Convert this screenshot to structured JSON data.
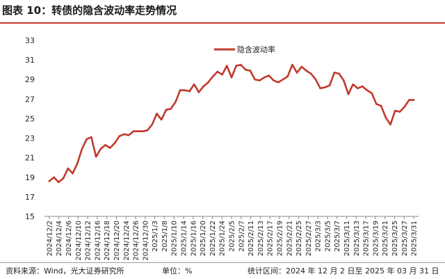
{
  "title": "图表 10：转债的隐含波动率走势情况",
  "footer": {
    "source": "资料来源：Wind，光大证券研究所",
    "unit": "单位：%",
    "period": "统计区间：2024 年 12 月 2 日至 2025 年 03 月 31 日"
  },
  "colors": {
    "series": "#c0392b",
    "accent_rule": "#c0392b"
  },
  "chart_data": {
    "type": "line",
    "title": "",
    "xlabel": "",
    "ylabel": "",
    "ylim": [
      15,
      33
    ],
    "yticks": [
      15,
      17,
      19,
      21,
      23,
      25,
      27,
      29,
      31,
      33
    ],
    "grid": false,
    "legend_position": "top-center",
    "x_tick_labels": [
      "2024/12/2",
      "2024/12/4",
      "2024/12/6",
      "2024/12/10",
      "2024/12/12",
      "2024/12/16",
      "2024/12/18",
      "2024/12/20",
      "2024/12/24",
      "2024/12/26",
      "2024/12/30",
      "2025/1/3",
      "2025/1/8",
      "2025/1/10",
      "2025/1/14",
      "2025/1/16",
      "2025/1/20",
      "2025/1/22",
      "2025/1/24",
      "2025/2/5",
      "2025/2/7",
      "2025/2/11",
      "2025/2/13",
      "2025/2/17",
      "2025/2/19",
      "2025/2/21",
      "2025/2/25",
      "2025/2/27",
      "2025/3/3",
      "2025/3/5",
      "2025/3/7",
      "2025/3/11",
      "2025/3/13",
      "2025/3/17",
      "2025/3/19",
      "2025/3/21",
      "2025/3/25",
      "2025/3/27",
      "2025/3/31"
    ],
    "series": [
      {
        "name": "隐含波动率",
        "values": [
          18.6,
          19.0,
          18.5,
          18.9,
          19.9,
          19.4,
          20.4,
          21.9,
          22.9,
          23.1,
          21.1,
          21.9,
          22.3,
          22.0,
          22.5,
          23.2,
          23.4,
          23.3,
          23.7,
          23.7,
          23.7,
          23.8,
          24.4,
          25.5,
          24.9,
          25.9,
          26.0,
          26.7,
          27.9,
          27.9,
          27.8,
          28.5,
          27.7,
          28.3,
          28.7,
          29.3,
          29.8,
          29.5,
          30.4,
          29.2,
          30.4,
          30.5,
          30.0,
          29.9,
          29.0,
          28.9,
          29.2,
          29.4,
          28.9,
          28.7,
          29.0,
          29.3,
          30.5,
          29.7,
          30.3,
          29.9,
          29.6,
          29.0,
          28.1,
          28.2,
          28.4,
          29.7,
          29.6,
          28.9,
          27.5,
          28.5,
          28.1,
          28.3,
          27.9,
          27.6,
          26.5,
          26.3,
          25.1,
          24.4,
          25.8,
          25.7,
          26.2,
          26.9,
          26.9
        ]
      }
    ]
  }
}
